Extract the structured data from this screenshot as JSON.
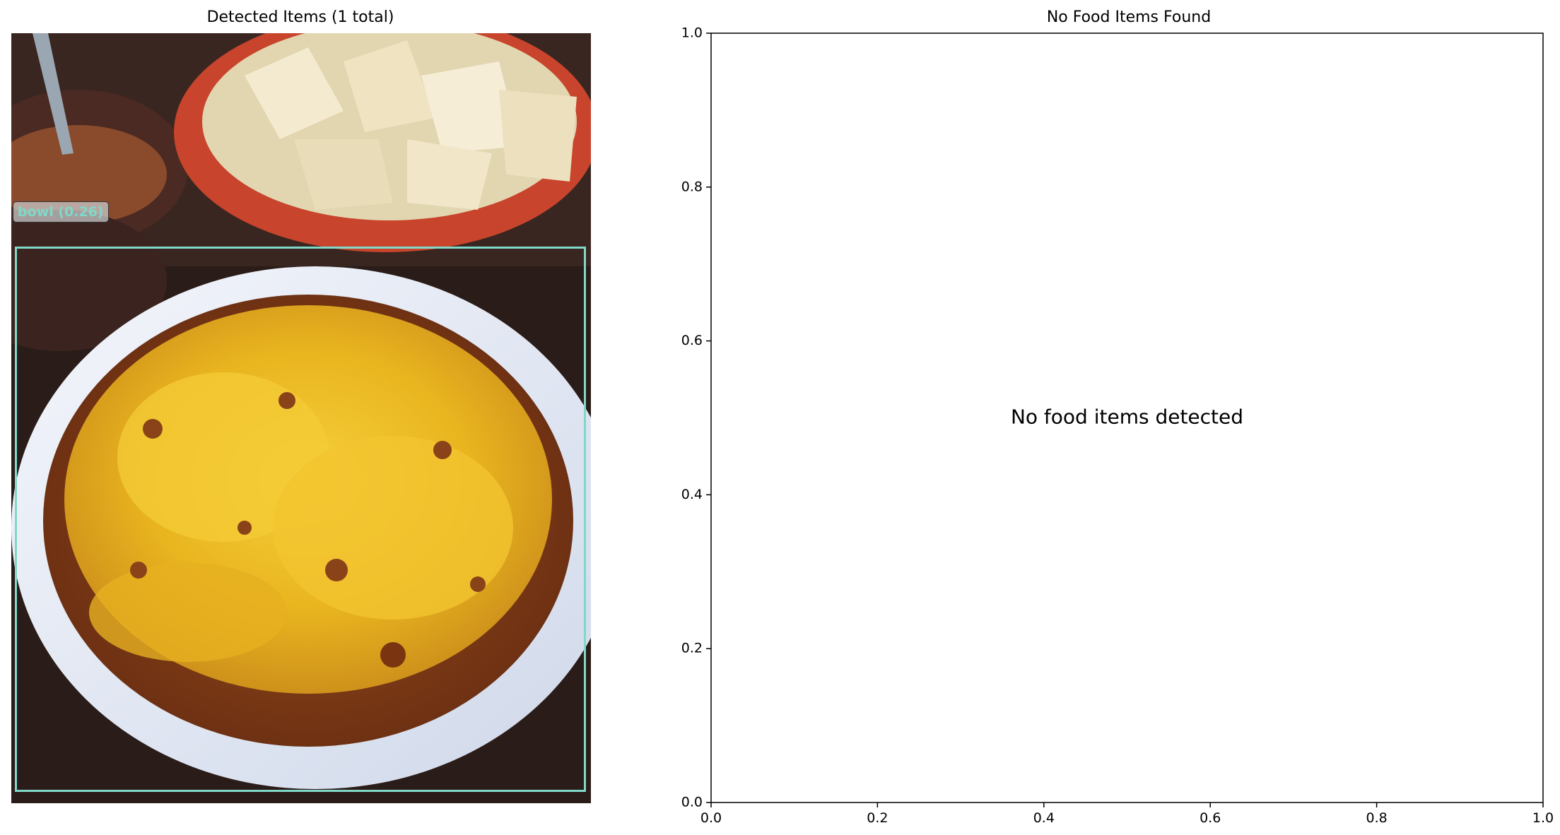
{
  "panels": {
    "left": {
      "title": "Detected Items (1 total)",
      "detection": {
        "label": "bowl (0.26)",
        "color": "#7fd8c8"
      }
    },
    "right": {
      "title": "No Food Items Found",
      "message": "No food items detected"
    }
  },
  "chart_data": [
    {
      "type": "image",
      "title": "Detected Items (1 total)",
      "detections": [
        {
          "label": "bowl",
          "score": 0.26,
          "text": "bowl (0.26)"
        }
      ]
    },
    {
      "type": "scatter",
      "title": "No Food Items Found",
      "series": [],
      "xlim": [
        0.0,
        1.0
      ],
      "ylim": [
        0.0,
        1.0
      ],
      "xticks": [
        "0.0",
        "0.2",
        "0.4",
        "0.6",
        "0.8",
        "1.0"
      ],
      "yticks": [
        "0.0",
        "0.2",
        "0.4",
        "0.6",
        "0.8",
        "1.0"
      ],
      "annotations": [
        {
          "text": "No food items detected",
          "x": 0.5,
          "y": 0.5
        }
      ],
      "grid": false
    }
  ]
}
